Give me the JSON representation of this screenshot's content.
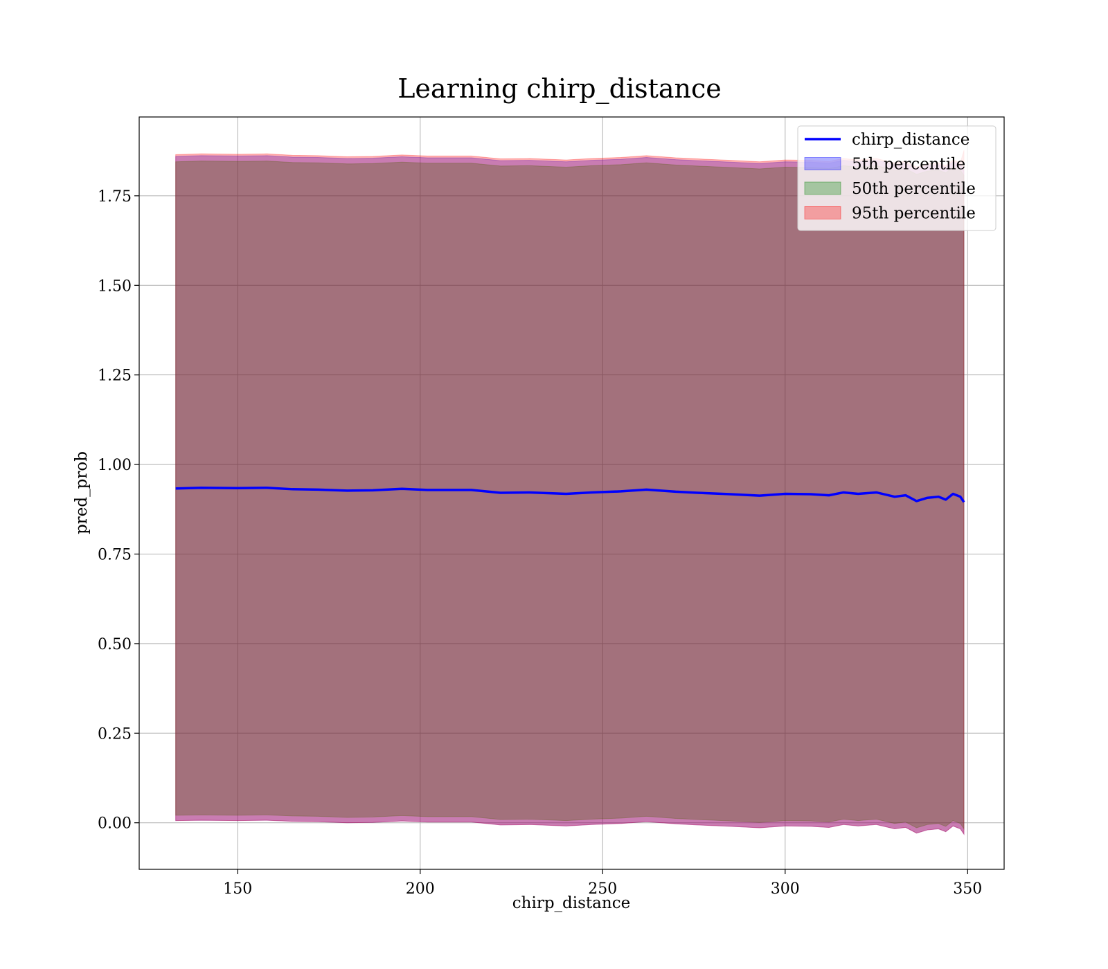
{
  "chart_data": {
    "type": "area",
    "title": "Learning chirp_distance",
    "xlabel": "chirp_distance",
    "ylabel": "pred_prob",
    "xlim": [
      123,
      360
    ],
    "ylim": [
      -0.13,
      1.97
    ],
    "xticks": [
      150,
      200,
      250,
      300,
      350
    ],
    "xtick_labels": [
      "150",
      "200",
      "250",
      "300",
      "350"
    ],
    "yticks": [
      0.0,
      0.25,
      0.5,
      0.75,
      1.0,
      1.25,
      1.5,
      1.75
    ],
    "ytick_labels": [
      "0.00",
      "0.25",
      "0.50",
      "0.75",
      "1.00",
      "1.25",
      "1.50",
      "1.75"
    ],
    "grid": true,
    "legend_position": "top-right",
    "x": [
      133,
      140,
      150,
      158,
      165,
      172,
      180,
      187,
      195,
      202,
      214,
      222,
      230,
      240,
      247,
      255,
      262,
      270,
      276,
      285,
      293,
      300,
      307,
      312,
      316,
      320,
      325,
      330,
      333,
      336,
      339,
      342,
      344,
      346,
      348,
      349
    ],
    "mean": [
      0.933,
      0.935,
      0.934,
      0.935,
      0.931,
      0.93,
      0.927,
      0.928,
      0.932,
      0.929,
      0.929,
      0.921,
      0.922,
      0.918,
      0.922,
      0.925,
      0.93,
      0.924,
      0.921,
      0.917,
      0.913,
      0.918,
      0.917,
      0.914,
      0.922,
      0.918,
      0.922,
      0.91,
      0.914,
      0.898,
      0.907,
      0.91,
      0.902,
      0.918,
      0.91,
      0.895
    ],
    "series": [
      {
        "name": "5th percentile",
        "color": "#0000ff",
        "opacity": 0.3,
        "lower": [
          0.006,
          0.007,
          0.006,
          0.007,
          0.004,
          0.003,
          0.0,
          0.001,
          0.005,
          0.002,
          0.002,
          -0.006,
          -0.005,
          -0.009,
          -0.005,
          -0.002,
          0.003,
          -0.003,
          -0.006,
          -0.01,
          -0.014,
          -0.009,
          -0.01,
          -0.013,
          -0.005,
          -0.009,
          -0.005,
          -0.017,
          -0.013,
          -0.029,
          -0.02,
          -0.017,
          -0.025,
          -0.009,
          -0.017,
          -0.032
        ],
        "upper": [
          1.86,
          1.862,
          1.861,
          1.862,
          1.858,
          1.857,
          1.854,
          1.855,
          1.859,
          1.856,
          1.856,
          1.848,
          1.849,
          1.845,
          1.849,
          1.852,
          1.857,
          1.851,
          1.848,
          1.844,
          1.84,
          1.845,
          1.844,
          1.841,
          1.849,
          1.845,
          1.849,
          1.837,
          1.841,
          1.825,
          1.834,
          1.837,
          1.829,
          1.845,
          1.837,
          1.822
        ]
      },
      {
        "name": "50th percentile",
        "color": "#008000",
        "opacity": 0.3,
        "lower": [
          0.021,
          0.022,
          0.021,
          0.022,
          0.019,
          0.018,
          0.015,
          0.016,
          0.02,
          0.017,
          0.017,
          0.009,
          0.01,
          0.006,
          0.01,
          0.013,
          0.018,
          0.012,
          0.009,
          0.005,
          0.001,
          0.006,
          0.005,
          0.002,
          0.01,
          0.006,
          0.01,
          -0.002,
          0.002,
          -0.014,
          -0.005,
          -0.002,
          -0.01,
          0.006,
          -0.002,
          -0.017
        ],
        "upper": [
          1.845,
          1.847,
          1.846,
          1.847,
          1.843,
          1.842,
          1.839,
          1.84,
          1.844,
          1.841,
          1.841,
          1.833,
          1.834,
          1.83,
          1.834,
          1.837,
          1.842,
          1.836,
          1.833,
          1.829,
          1.825,
          1.83,
          1.829,
          1.826,
          1.834,
          1.83,
          1.834,
          1.822,
          1.826,
          1.81,
          1.819,
          1.822,
          1.814,
          1.83,
          1.822,
          1.807
        ]
      },
      {
        "name": "95th percentile",
        "color": "#ff0000",
        "opacity": 0.3,
        "lower": [
          0.006,
          0.007,
          0.006,
          0.007,
          0.004,
          0.003,
          0.0,
          0.001,
          0.005,
          0.002,
          0.002,
          -0.006,
          -0.005,
          -0.009,
          -0.005,
          -0.002,
          0.003,
          -0.003,
          -0.006,
          -0.01,
          -0.014,
          -0.009,
          -0.01,
          -0.013,
          -0.005,
          -0.009,
          -0.005,
          -0.017,
          -0.013,
          -0.029,
          -0.02,
          -0.017,
          -0.025,
          -0.009,
          -0.017,
          -0.032
        ],
        "upper": [
          1.865,
          1.867,
          1.866,
          1.867,
          1.863,
          1.862,
          1.859,
          1.86,
          1.864,
          1.861,
          1.861,
          1.853,
          1.854,
          1.85,
          1.854,
          1.857,
          1.862,
          1.856,
          1.853,
          1.849,
          1.845,
          1.85,
          1.849,
          1.846,
          1.854,
          1.85,
          1.854,
          1.842,
          1.846,
          1.83,
          1.839,
          1.842,
          1.834,
          1.85,
          1.842,
          1.877
        ]
      }
    ],
    "line_series": {
      "name": "chirp_distance",
      "color": "#0000ff"
    }
  }
}
